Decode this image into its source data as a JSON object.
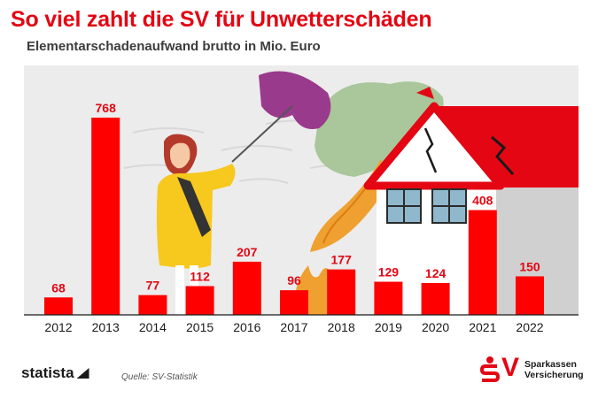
{
  "header": {
    "title": "So viel zahlt die SV für Unwetterschäden",
    "subtitle": "Elementarschadenaufwand brutto in Mio. Euro"
  },
  "chart_data": {
    "type": "bar",
    "categories": [
      "2012",
      "2013",
      "2014",
      "2015",
      "2016",
      "2017",
      "2018",
      "2019",
      "2020",
      "2021",
      "2022"
    ],
    "values": [
      68,
      768,
      77,
      112,
      207,
      96,
      177,
      129,
      124,
      408,
      150
    ],
    "xlabel": "",
    "ylabel": "",
    "ylim": [
      0,
      800
    ],
    "grid": false,
    "bar_color": "#ff0000",
    "label_color": "#e40613"
  },
  "footer": {
    "brand": "statista",
    "source": "Quelle: SV-Statistik",
    "logo_letters": "V",
    "logo_line1": "Sparkassen",
    "logo_line2": "Versicherung"
  },
  "colors": {
    "accent": "#e40613",
    "background_panel": "#ececec"
  }
}
